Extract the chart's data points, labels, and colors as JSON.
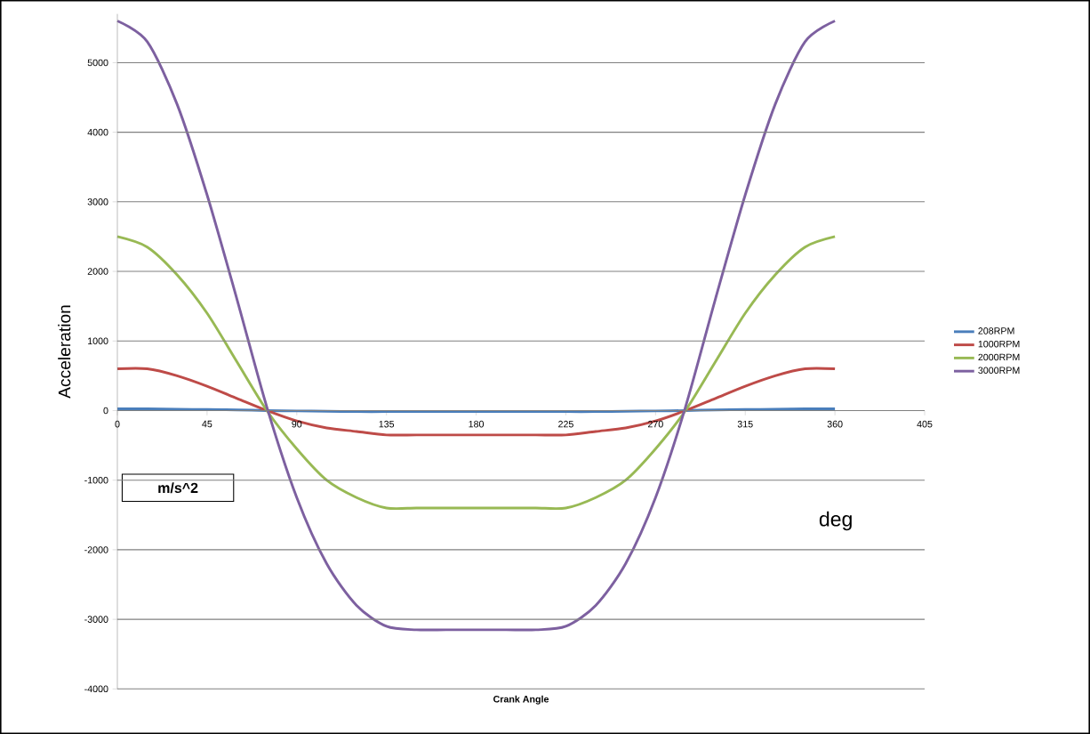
{
  "chart_data": {
    "type": "line",
    "xlabel": "Crank Angle",
    "ylabel": "Acceleration",
    "x": [
      0,
      15,
      30,
      45,
      60,
      75,
      90,
      105,
      120,
      135,
      150,
      165,
      180,
      195,
      210,
      225,
      240,
      255,
      270,
      285,
      300,
      315,
      330,
      345,
      360
    ],
    "series": [
      {
        "name": "208RPM",
        "color": "#4a7ebb",
        "values": [
          25,
          25,
          20,
          15,
          10,
          0,
          -5,
          -10,
          -15,
          -15,
          -15,
          -15,
          -15,
          -15,
          -15,
          -15,
          -15,
          -10,
          -5,
          0,
          10,
          15,
          20,
          25,
          25
        ]
      },
      {
        "name": "1000RPM",
        "color": "#be4b48",
        "values": [
          600,
          600,
          500,
          350,
          175,
          0,
          -150,
          -250,
          -300,
          -350,
          -350,
          -350,
          -350,
          -350,
          -350,
          -350,
          -300,
          -250,
          -150,
          0,
          175,
          350,
          500,
          600,
          600
        ]
      },
      {
        "name": "2000RPM",
        "color": "#98b954",
        "values": [
          2500,
          2350,
          1950,
          1400,
          700,
          0,
          -550,
          -1000,
          -1250,
          -1400,
          -1400,
          -1400,
          -1400,
          -1400,
          -1400,
          -1400,
          -1250,
          -1000,
          -550,
          0,
          700,
          1400,
          1950,
          2350,
          2500
        ]
      },
      {
        "name": "3000RPM",
        "color": "#7d60a0",
        "values": [
          5600,
          5300,
          4400,
          3100,
          1600,
          50,
          -1250,
          -2200,
          -2800,
          -3100,
          -3150,
          -3150,
          -3150,
          -3150,
          -3150,
          -3100,
          -2800,
          -2200,
          -1250,
          50,
          1600,
          3100,
          4400,
          5300,
          5600
        ]
      }
    ],
    "xlim": [
      0,
      405
    ],
    "xticks": [
      0,
      45,
      90,
      135,
      180,
      225,
      270,
      315,
      360,
      405
    ],
    "ylim": [
      -4000,
      5700
    ],
    "yticks": [
      -4000,
      -3000,
      -2000,
      -1000,
      0,
      1000,
      2000,
      3000,
      4000,
      5000
    ],
    "grid": "y",
    "legend": "right",
    "marker": "none",
    "line_style": "solid",
    "annotations": [
      "m/s^2",
      "deg"
    ]
  }
}
